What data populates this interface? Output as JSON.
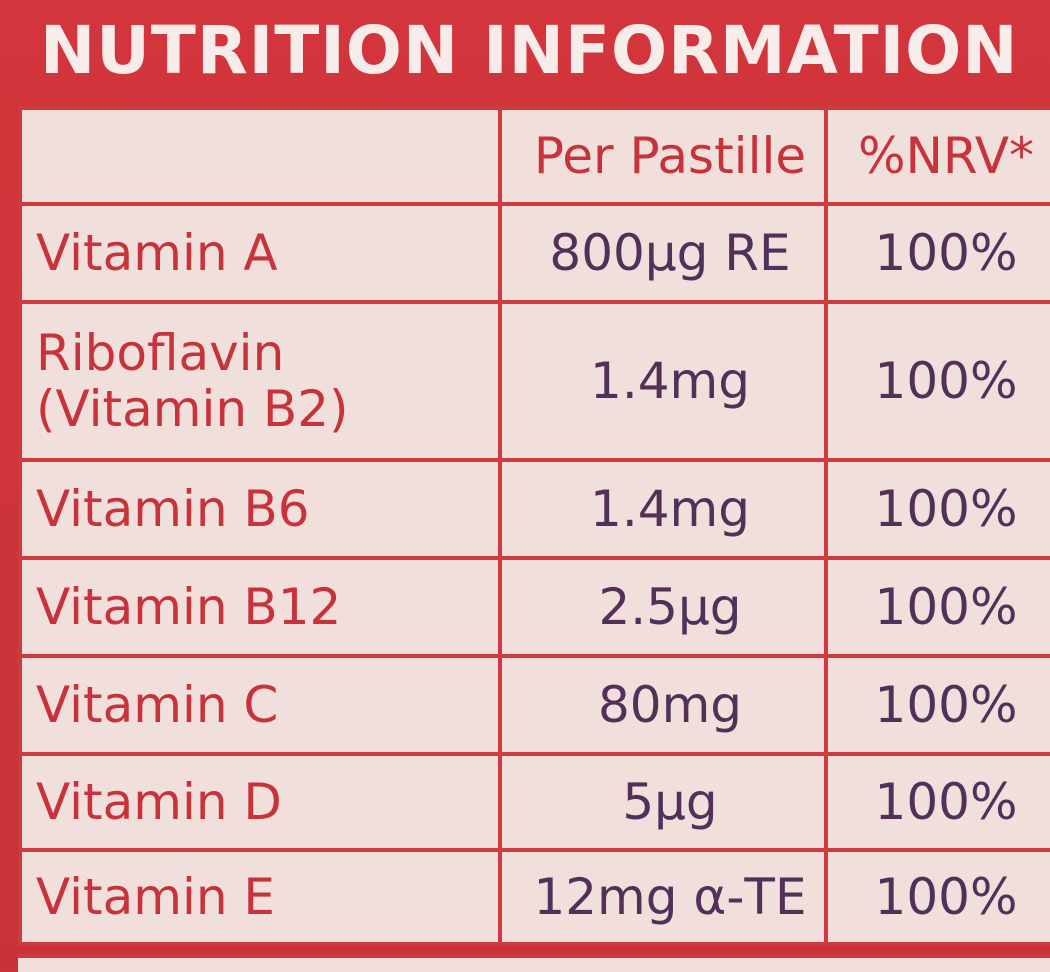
{
  "title": "NUTRITION INFORMATION",
  "header": {
    "per": "Per Pastille",
    "nrv": "%NRV*"
  },
  "rows": [
    {
      "name": "Vitamin A",
      "per": "800µg RE",
      "nrv": "100%"
    },
    {
      "name_line1": "Riboflavin",
      "name_line2": "(Vitamin B2)",
      "per": "1.4mg",
      "nrv": "100%"
    },
    {
      "name": "Vitamin B6",
      "per": "1.4mg",
      "nrv": "100%"
    },
    {
      "name": "Vitamin B12",
      "per": "2.5µg",
      "nrv": "100%"
    },
    {
      "name": "Vitamin C",
      "per": "80mg",
      "nrv": "100%"
    },
    {
      "name": "Vitamin D",
      "per": "5µg",
      "nrv": "100%"
    },
    {
      "name": "Vitamin E",
      "per": "12mg α-TE",
      "nrv": "100%"
    }
  ],
  "colors": {
    "panel": "#c8363c",
    "cell": "#f1dfdc",
    "label_text": "#c8333b",
    "value_text": "#52305a"
  }
}
